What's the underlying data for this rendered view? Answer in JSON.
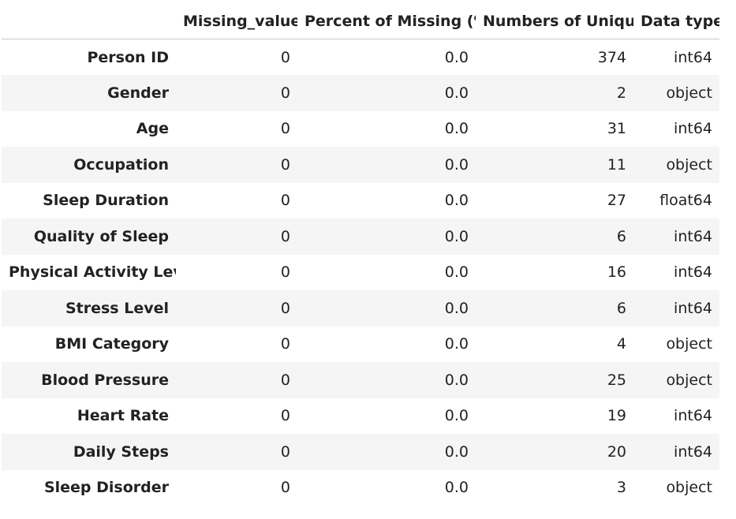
{
  "table": {
    "columns": [
      "",
      "Missing_values",
      "Percent of Missing (%)",
      "Numbers of Unique",
      "Data type"
    ],
    "rows": [
      {
        "index": "Person ID",
        "missing": "0",
        "percent": "0.0",
        "unique": "374",
        "dtype": "int64"
      },
      {
        "index": "Gender",
        "missing": "0",
        "percent": "0.0",
        "unique": "2",
        "dtype": "object"
      },
      {
        "index": "Age",
        "missing": "0",
        "percent": "0.0",
        "unique": "31",
        "dtype": "int64"
      },
      {
        "index": "Occupation",
        "missing": "0",
        "percent": "0.0",
        "unique": "11",
        "dtype": "object"
      },
      {
        "index": "Sleep Duration",
        "missing": "0",
        "percent": "0.0",
        "unique": "27",
        "dtype": "float64"
      },
      {
        "index": "Quality of Sleep",
        "missing": "0",
        "percent": "0.0",
        "unique": "6",
        "dtype": "int64"
      },
      {
        "index": "Physical Activity Level",
        "missing": "0",
        "percent": "0.0",
        "unique": "16",
        "dtype": "int64"
      },
      {
        "index": "Stress Level",
        "missing": "0",
        "percent": "0.0",
        "unique": "6",
        "dtype": "int64"
      },
      {
        "index": "BMI Category",
        "missing": "0",
        "percent": "0.0",
        "unique": "4",
        "dtype": "object"
      },
      {
        "index": "Blood Pressure",
        "missing": "0",
        "percent": "0.0",
        "unique": "25",
        "dtype": "object"
      },
      {
        "index": "Heart Rate",
        "missing": "0",
        "percent": "0.0",
        "unique": "19",
        "dtype": "int64"
      },
      {
        "index": "Daily Steps",
        "missing": "0",
        "percent": "0.0",
        "unique": "20",
        "dtype": "int64"
      },
      {
        "index": "Sleep Disorder",
        "missing": "0",
        "percent": "0.0",
        "unique": "3",
        "dtype": "object"
      }
    ]
  },
  "colors": {
    "text": "#222222",
    "stripe": "#f5f5f5",
    "border": "#c8c8c8"
  }
}
